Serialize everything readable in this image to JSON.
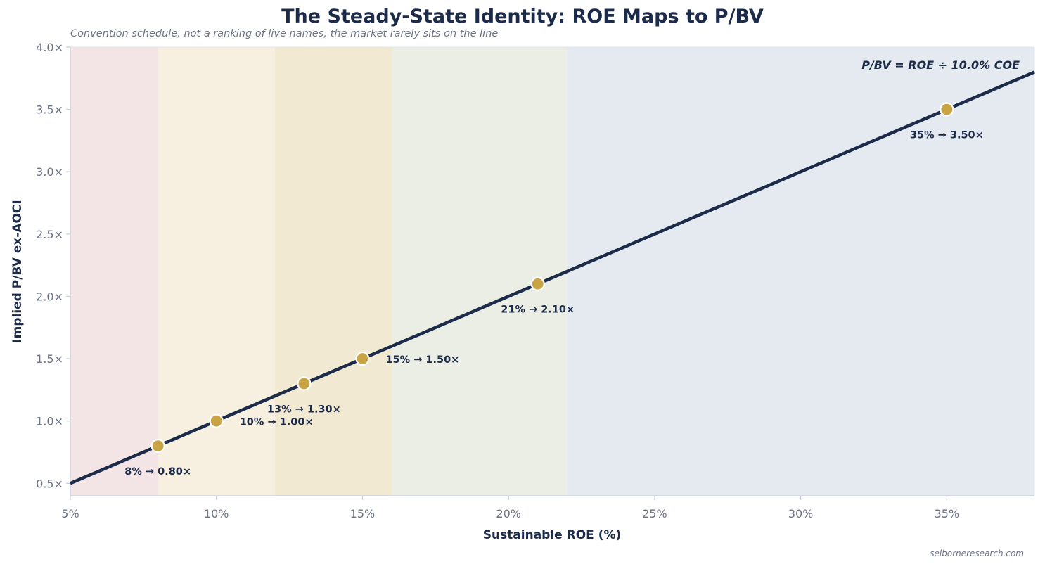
{
  "header": {
    "title": "The Steady-State Identity: ROE Maps to P/BV",
    "subtitle": "Convention schedule, not a ranking of live names; the market rarely sits on the line",
    "credit": "selborneresearch.com"
  },
  "chart_data": {
    "type": "line",
    "title": "The Steady-State Identity: ROE Maps to P/BV",
    "xlabel": "Sustainable ROE (%)",
    "ylabel": "Implied P/BV ex-AOCI",
    "xlim": [
      5,
      38
    ],
    "ylim": [
      0.4,
      4.0
    ],
    "x_ticks": [
      5,
      10,
      15,
      20,
      25,
      30,
      35
    ],
    "x_tick_labels": [
      "5%",
      "10%",
      "15%",
      "20%",
      "25%",
      "30%",
      "35%"
    ],
    "y_ticks": [
      0.5,
      1.0,
      1.5,
      2.0,
      2.5,
      3.0,
      3.5,
      4.0
    ],
    "y_tick_labels": [
      "0.5×",
      "1.0×",
      "1.5×",
      "2.0×",
      "2.5×",
      "3.0×",
      "3.5×",
      "4.0×"
    ],
    "grid": false,
    "series": [
      {
        "x": [
          5,
          38
        ],
        "y": [
          0.5,
          3.8
        ],
        "color": "#1c2b4a"
      }
    ],
    "points": [
      {
        "x": 8,
        "y": 0.8,
        "label": "8% → 0.80×",
        "label_side": "below"
      },
      {
        "x": 10,
        "y": 1.0,
        "label": "10% → 1.00×",
        "label_side": "right"
      },
      {
        "x": 13,
        "y": 1.3,
        "label": "13% → 1.30×",
        "label_side": "below"
      },
      {
        "x": 15,
        "y": 1.5,
        "label": "15% → 1.50×",
        "label_side": "right"
      },
      {
        "x": 21,
        "y": 2.1,
        "label": "21% → 2.10×",
        "label_side": "below"
      },
      {
        "x": 35,
        "y": 3.5,
        "label": "35% → 3.50×",
        "label_side": "below"
      }
    ],
    "bands": [
      {
        "from": 5,
        "to": 8,
        "color": "#f3e5e5"
      },
      {
        "from": 8,
        "to": 12,
        "color": "#f7f0e0"
      },
      {
        "from": 12,
        "to": 16,
        "color": "#f1e9d2"
      },
      {
        "from": 16,
        "to": 22,
        "color": "#ebeee4"
      },
      {
        "from": 22,
        "to": 38,
        "color": "#e5eaf0"
      }
    ],
    "annotation": "P/BV = ROE ÷ 10.0% COE",
    "annotation_position": "top-right",
    "colors": {
      "line": "#1c2b4a",
      "marker": "#c9a444",
      "marker_edge": "#ffffff",
      "axis": "#c7cfdc",
      "tick_text": "#6b7385"
    }
  }
}
